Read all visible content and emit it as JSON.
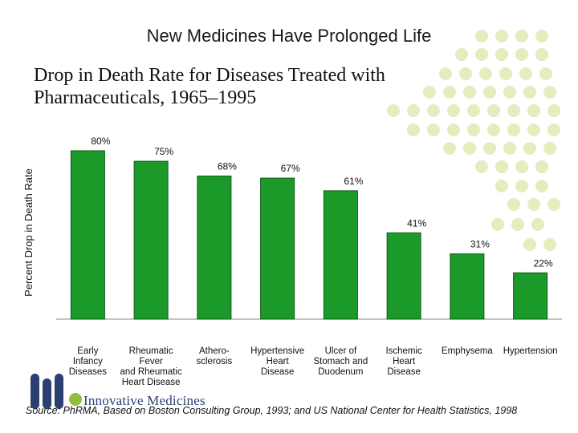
{
  "slide": {
    "title": "New Medicines Have Prolonged Life",
    "subtitle": "Drop in Death Rate for Diseases Treated with Pharmaceuticals, 1965–1995",
    "source": "Source: PhRMA, Based on Boston Consulting Group, 1993; and US National Center for Health Statistics, 1998"
  },
  "logo": {
    "text": "Innovative Medicines"
  },
  "colors": {
    "bar": "#1b9a2a",
    "bar_edge": "#0d5a16",
    "dot": "#e3edbe",
    "logo_primary": "#2c3f73",
    "logo_accent": "#8fbf3f"
  },
  "chart_data": {
    "type": "bar",
    "title": "Drop in Death Rate for Diseases Treated with Pharmaceuticals, 1965–1995",
    "xlabel": "",
    "ylabel": "Percent Drop in Death Rate",
    "ylim": [
      0,
      80
    ],
    "grid": false,
    "categories": [
      "Early Infancy Diseases",
      "Rheumatic Fever and Rheumatic Heart Disease",
      "Athero- sclerosis",
      "Hypertensive Heart Disease",
      "Ulcer of Stomach and Duodenum",
      "Ischemic Heart Disease",
      "Emphysema",
      "Hypertension"
    ],
    "category_lines": [
      [
        "Early",
        "Infancy",
        "Diseases"
      ],
      [
        "Rheumatic",
        "Fever",
        "and Rheumatic",
        "Heart Disease"
      ],
      [
        "Athero-",
        "sclerosis"
      ],
      [
        "Hypertensive",
        "Heart",
        "Disease"
      ],
      [
        "Ulcer of",
        "Stomach and",
        "Duodenum"
      ],
      [
        "Ischemic",
        "Heart",
        "Disease"
      ],
      [
        "Emphysema"
      ],
      [
        "Hypertension"
      ]
    ],
    "values": [
      80,
      75,
      68,
      67,
      61,
      41,
      31,
      22
    ],
    "value_labels": [
      "80%",
      "75%",
      "68%",
      "67%",
      "61%",
      "41%",
      "31%",
      "22%"
    ]
  }
}
